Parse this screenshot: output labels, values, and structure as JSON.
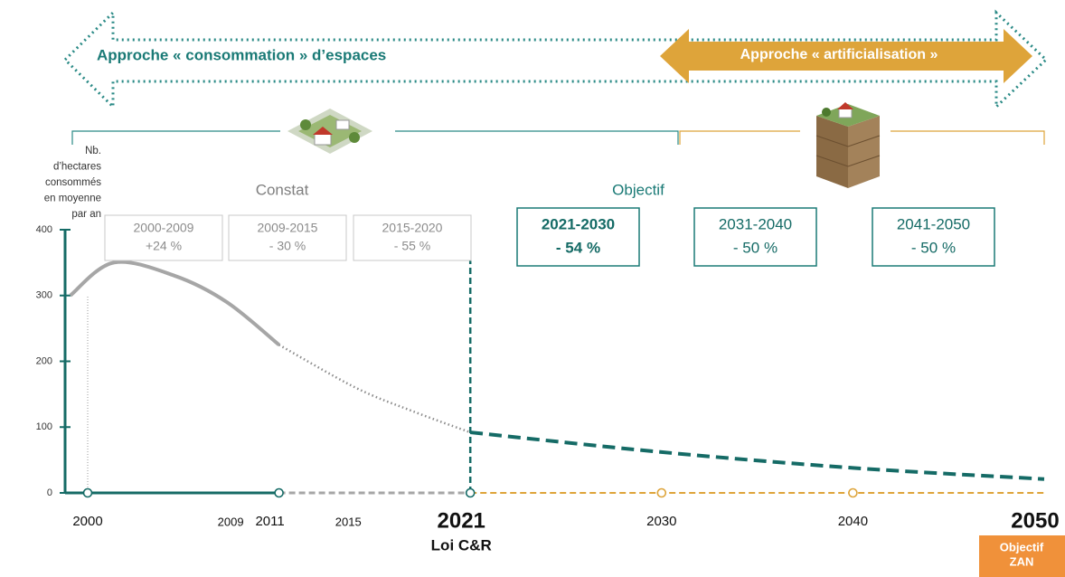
{
  "chart_data": {
    "type": "line",
    "banners": [
      {
        "text": "Approche « consommation » d’espaces",
        "color": "#1a7a76"
      },
      {
        "text": "Approche « artificialisation »",
        "color": "#dea43a"
      }
    ],
    "sections": [
      "Constat",
      "Objectif"
    ],
    "y_label": [
      "Nb.",
      "d’hectares",
      "consommés",
      "en moyenne",
      "par an"
    ],
    "ylim": [
      0,
      400
    ],
    "yticks": [
      0,
      100,
      200,
      300,
      400
    ],
    "xlim": [
      1999,
      2050
    ],
    "xticks": [
      2000,
      2011,
      2021,
      2030,
      2040,
      2050
    ],
    "minor_xticks": [
      2009,
      2015
    ],
    "annotations": [
      [
        "Loi C&R"
      ],
      [
        "Objectif",
        "ZAN"
      ]
    ],
    "periods": [
      {
        "range": "2000-2009",
        "change": "+24 %"
      },
      {
        "range": "2009-2015",
        "change": "- 30 %"
      },
      {
        "range": "2015-2020",
        "change": "- 55 %"
      },
      {
        "range": "2021-2030",
        "change": "- 54 %"
      },
      {
        "range": "2031-2040",
        "change": "- 50 %"
      },
      {
        "range": "2041-2050",
        "change": "- 50 %"
      }
    ],
    "series": [
      {
        "style": "solid",
        "color": "#a6a6a6",
        "x": [
          1999,
          2001.5,
          2005,
          2008,
          2011
        ],
        "values": [
          300,
          350,
          330,
          290,
          225
        ]
      },
      {
        "style": "dotted",
        "color": "#8c8c8c",
        "x": [
          2011,
          2015,
          2018,
          2021
        ],
        "values": [
          225,
          160,
          124,
          92
        ]
      },
      {
        "style": "dashed",
        "color": "#156b66",
        "x": [
          2021,
          2030,
          2040,
          2050
        ],
        "values": [
          92,
          62,
          38,
          21
        ]
      }
    ]
  }
}
